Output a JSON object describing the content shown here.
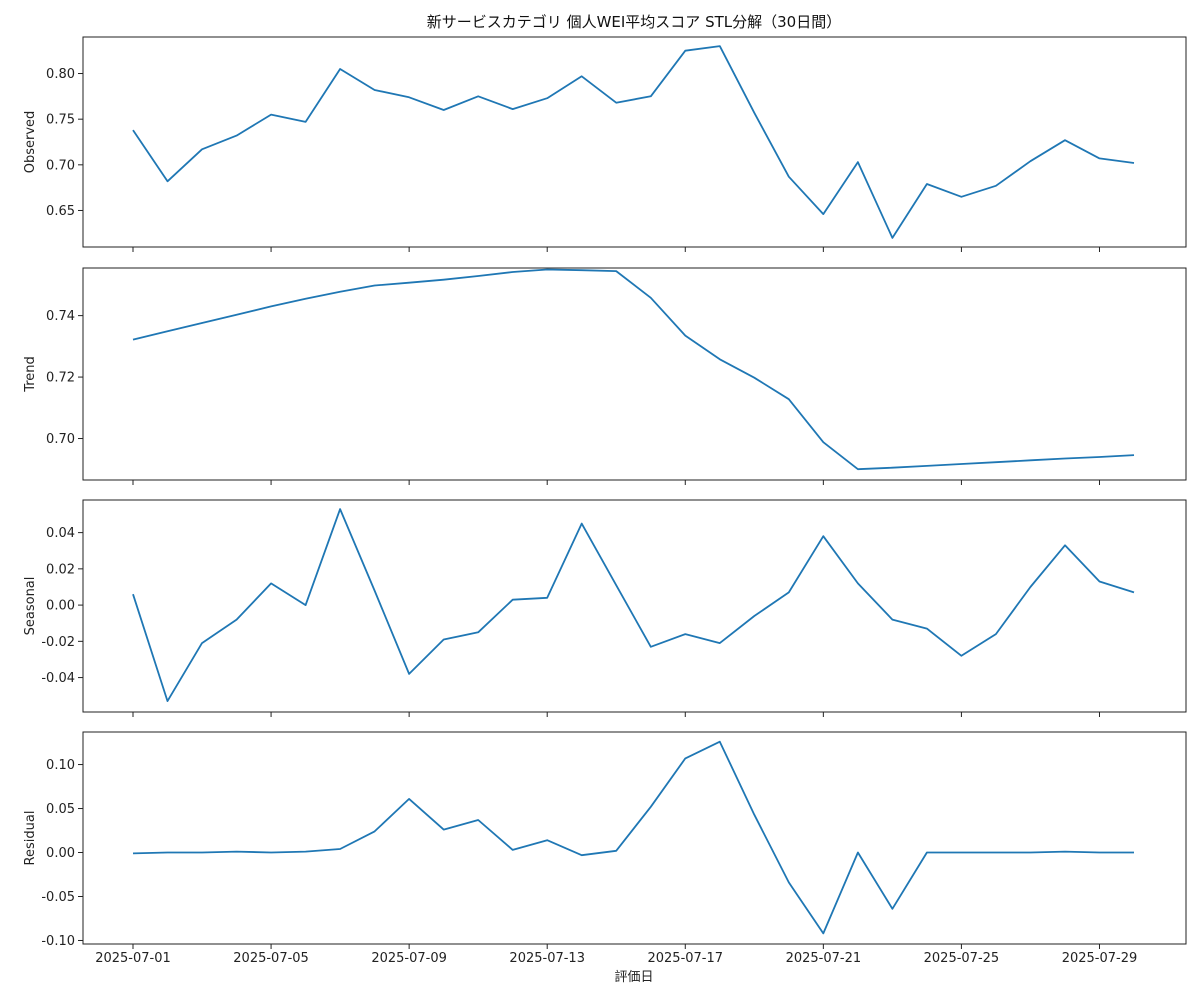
{
  "chart_data": {
    "type": "line",
    "title": "新サービスカテゴリ 個人WEI平均スコア STL分解（30日間）",
    "xlabel": "評価日",
    "x": [
      "2025-07-01",
      "2025-07-02",
      "2025-07-03",
      "2025-07-04",
      "2025-07-05",
      "2025-07-06",
      "2025-07-07",
      "2025-07-08",
      "2025-07-09",
      "2025-07-10",
      "2025-07-11",
      "2025-07-12",
      "2025-07-13",
      "2025-07-14",
      "2025-07-15",
      "2025-07-16",
      "2025-07-17",
      "2025-07-18",
      "2025-07-19",
      "2025-07-20",
      "2025-07-21",
      "2025-07-22",
      "2025-07-23",
      "2025-07-24",
      "2025-07-25",
      "2025-07-26",
      "2025-07-27",
      "2025-07-28",
      "2025-07-29",
      "2025-07-30"
    ],
    "xticks": [
      "2025-07-01",
      "2025-07-05",
      "2025-07-09",
      "2025-07-13",
      "2025-07-17",
      "2025-07-21",
      "2025-07-25",
      "2025-07-29"
    ],
    "color": "#1f77b4",
    "panels": [
      {
        "ylabel": "Observed",
        "ylim": [
          0.61,
          0.84
        ],
        "yticks": [
          0.65,
          0.7,
          0.75,
          0.8
        ],
        "tick_decimals": 2,
        "values": [
          0.738,
          0.682,
          0.717,
          0.732,
          0.755,
          0.747,
          0.805,
          0.782,
          0.774,
          0.76,
          0.775,
          0.761,
          0.773,
          0.797,
          0.768,
          0.775,
          0.825,
          0.83,
          0.757,
          0.687,
          0.646,
          0.703,
          0.62,
          0.679,
          0.665,
          0.677,
          0.704,
          0.727,
          0.707,
          0.702
        ]
      },
      {
        "ylabel": "Trend",
        "ylim": [
          0.6865,
          0.7555
        ],
        "yticks": [
          0.7,
          0.72,
          0.74
        ],
        "tick_decimals": 2,
        "values": [
          0.7322,
          0.7349,
          0.7376,
          0.7403,
          0.743,
          0.7455,
          0.7478,
          0.7498,
          0.7507,
          0.7517,
          0.7529,
          0.7542,
          0.755,
          0.7548,
          0.7545,
          0.7458,
          0.7335,
          0.7258,
          0.7198,
          0.7128,
          0.6988,
          0.69,
          0.6905,
          0.6911,
          0.6917,
          0.6923,
          0.6929,
          0.6935,
          0.694,
          0.6946
        ]
      },
      {
        "ylabel": "Seasonal",
        "ylim": [
          -0.059,
          0.058
        ],
        "yticks": [
          -0.04,
          -0.02,
          0.0,
          0.02,
          0.04
        ],
        "tick_decimals": 2,
        "values": [
          0.006,
          -0.053,
          -0.021,
          -0.008,
          0.012,
          0.0,
          0.053,
          0.008,
          -0.038,
          -0.019,
          -0.015,
          0.003,
          0.004,
          0.045,
          0.011,
          -0.023,
          -0.016,
          -0.021,
          -0.006,
          0.007,
          0.038,
          0.012,
          -0.008,
          -0.013,
          -0.028,
          -0.016,
          0.01,
          0.033,
          0.013,
          0.007
        ]
      },
      {
        "ylabel": "Residual",
        "ylim": [
          -0.104,
          0.137
        ],
        "yticks": [
          -0.1,
          -0.05,
          0.0,
          0.05,
          0.1
        ],
        "tick_decimals": 2,
        "values": [
          -0.001,
          0.0,
          0.0,
          0.001,
          0.0,
          0.001,
          0.004,
          0.024,
          0.061,
          0.026,
          0.037,
          0.003,
          0.014,
          -0.003,
          0.002,
          0.052,
          0.107,
          0.126,
          0.043,
          -0.034,
          -0.092,
          0.0,
          -0.064,
          0.0,
          0.0,
          0.0,
          0.0,
          0.001,
          0.0,
          0.0
        ]
      }
    ]
  }
}
